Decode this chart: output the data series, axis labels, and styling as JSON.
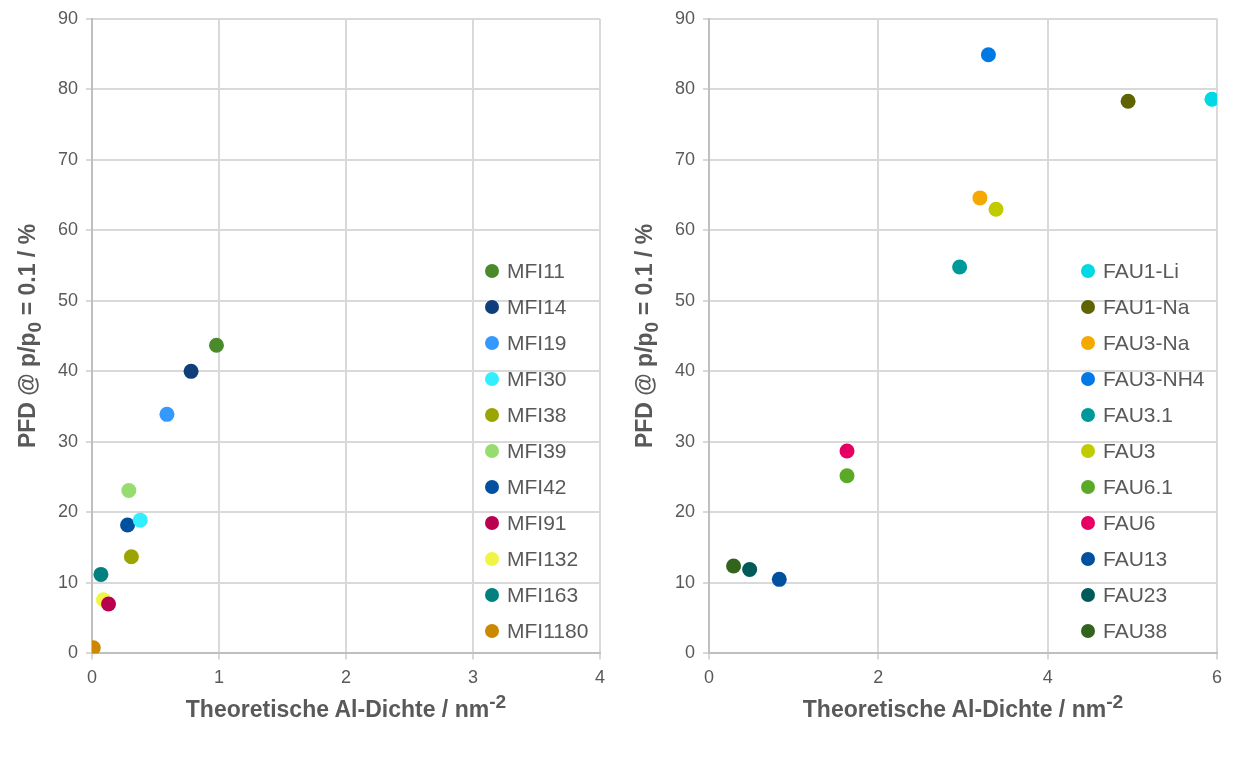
{
  "chart_data": [
    {
      "type": "scatter",
      "xlabel": "Theoretische Al-Dichte / nm$^{-2}$",
      "ylabel": "PFD @ p/p$_{0}$ = 0.1 / %",
      "xlim": [
        0,
        4
      ],
      "xticks": [
        0,
        1,
        2,
        3,
        4
      ],
      "ylim": [
        0,
        90
      ],
      "yticks": [
        0,
        10,
        20,
        30,
        40,
        50,
        60,
        70,
        80,
        90
      ],
      "grid": true,
      "legend": "right",
      "marker": "circle",
      "series": [
        {
          "name": "MFI11",
          "color": "#4a8a2a",
          "x": [
            0.98
          ],
          "values": [
            43.7
          ]
        },
        {
          "name": "MFI14",
          "color": "#0e3f7a",
          "x": [
            0.78
          ],
          "values": [
            40
          ]
        },
        {
          "name": "MFI19",
          "color": "#3399ff",
          "x": [
            0.59
          ],
          "values": [
            33.9
          ]
        },
        {
          "name": "MFI30",
          "color": "#33eeff",
          "x": [
            0.38
          ],
          "values": [
            18.9
          ]
        },
        {
          "name": "MFI38",
          "color": "#9aa500",
          "x": [
            0.31
          ],
          "values": [
            13.7
          ]
        },
        {
          "name": "MFI39",
          "color": "#96dc6e",
          "x": [
            0.29
          ],
          "values": [
            23.1
          ]
        },
        {
          "name": "MFI42",
          "color": "#0050a0",
          "x": [
            0.28
          ],
          "values": [
            18.2
          ]
        },
        {
          "name": "MFI91",
          "color": "#b8004f",
          "x": [
            0.13
          ],
          "values": [
            7
          ]
        },
        {
          "name": "MFI132",
          "color": "#f0f545",
          "x": [
            0.09
          ],
          "values": [
            7.6
          ]
        },
        {
          "name": "MFI163",
          "color": "#00807f",
          "x": [
            0.07
          ],
          "values": [
            11.2
          ]
        },
        {
          "name": "MFI1180",
          "color": "#cc8800",
          "x": [
            0.01
          ],
          "values": [
            0.8
          ]
        }
      ]
    },
    {
      "type": "scatter",
      "xlabel": "Theoretische Al-Dichte / nm$^{-2}$",
      "ylabel": "PFD @ p/p$_{0}$ = 0.1 / %",
      "xlim": [
        0,
        6
      ],
      "xticks": [
        0,
        2,
        4,
        6
      ],
      "ylim": [
        0,
        90
      ],
      "yticks": [
        0,
        10,
        20,
        30,
        40,
        50,
        60,
        70,
        80,
        90
      ],
      "grid": true,
      "legend": "right",
      "marker": "circle",
      "series": [
        {
          "name": "FAU1-Li",
          "color": "#00d8e6",
          "x": [
            5.94
          ],
          "values": [
            78.6
          ]
        },
        {
          "name": "FAU1-Na",
          "color": "#5f6400",
          "x": [
            4.95
          ],
          "values": [
            78.3
          ]
        },
        {
          "name": "FAU3-Na",
          "color": "#f5a800",
          "x": [
            3.2
          ],
          "values": [
            64.6
          ]
        },
        {
          "name": "FAU3-NH4",
          "color": "#0078e6",
          "x": [
            3.3
          ],
          "values": [
            84.9
          ]
        },
        {
          "name": "FAU3.1",
          "color": "#00999a",
          "x": [
            2.96
          ],
          "values": [
            54.8
          ]
        },
        {
          "name": "FAU3",
          "color": "#c0cc00",
          "x": [
            3.39
          ],
          "values": [
            63
          ]
        },
        {
          "name": "FAU6.1",
          "color": "#5aaa28",
          "x": [
            1.63
          ],
          "values": [
            25.2
          ]
        },
        {
          "name": "FAU6",
          "color": "#e60064",
          "x": [
            1.63
          ],
          "values": [
            28.7
          ]
        },
        {
          "name": "FAU13",
          "color": "#0050a0",
          "x": [
            0.83
          ],
          "values": [
            10.5
          ]
        },
        {
          "name": "FAU23",
          "color": "#005a5a",
          "x": [
            0.48
          ],
          "values": [
            11.9
          ]
        },
        {
          "name": "FAU38",
          "color": "#32641e",
          "x": [
            0.29
          ],
          "values": [
            12.4
          ]
        }
      ]
    }
  ]
}
